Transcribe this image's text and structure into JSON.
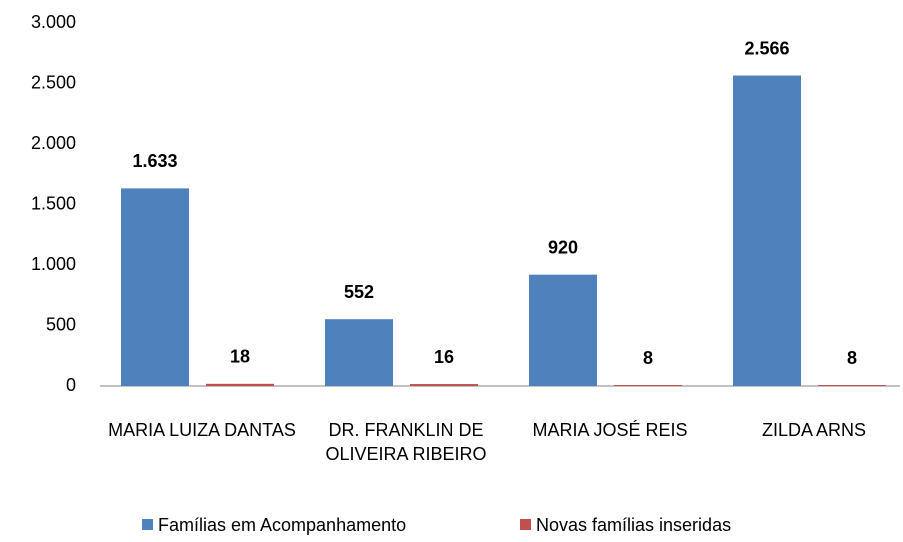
{
  "chart_data": {
    "type": "bar",
    "categories": [
      "MARIA LUIZA DANTAS",
      "DR. FRANKLIN DE OLIVEIRA RIBEIRO",
      "MARIA JOSÉ REIS",
      "ZILDA ARNS"
    ],
    "series": [
      {
        "name": "Famílias em Acompanhamento",
        "color": "#4f81bd",
        "values": [
          1633,
          552,
          920,
          2566
        ],
        "value_labels": [
          "1.633",
          "552",
          "920",
          "2.566"
        ]
      },
      {
        "name": "Novas famílias inseridas",
        "color": "#c0504d",
        "values": [
          18,
          16,
          8,
          8
        ],
        "value_labels": [
          "18",
          "16",
          "8",
          "8"
        ]
      }
    ],
    "ylim": [
      0,
      3000
    ],
    "yticks": [
      0,
      500,
      {
        "value": 1000,
        "label": "1.000"
      },
      {
        "value": 1500,
        "label": "1.500"
      },
      {
        "value": 2000,
        "label": "2.000"
      },
      {
        "value": 2500,
        "label": "2.500"
      },
      {
        "value": 3000,
        "label": "3.000"
      }
    ],
    "grid": false,
    "legend": "bottom"
  }
}
